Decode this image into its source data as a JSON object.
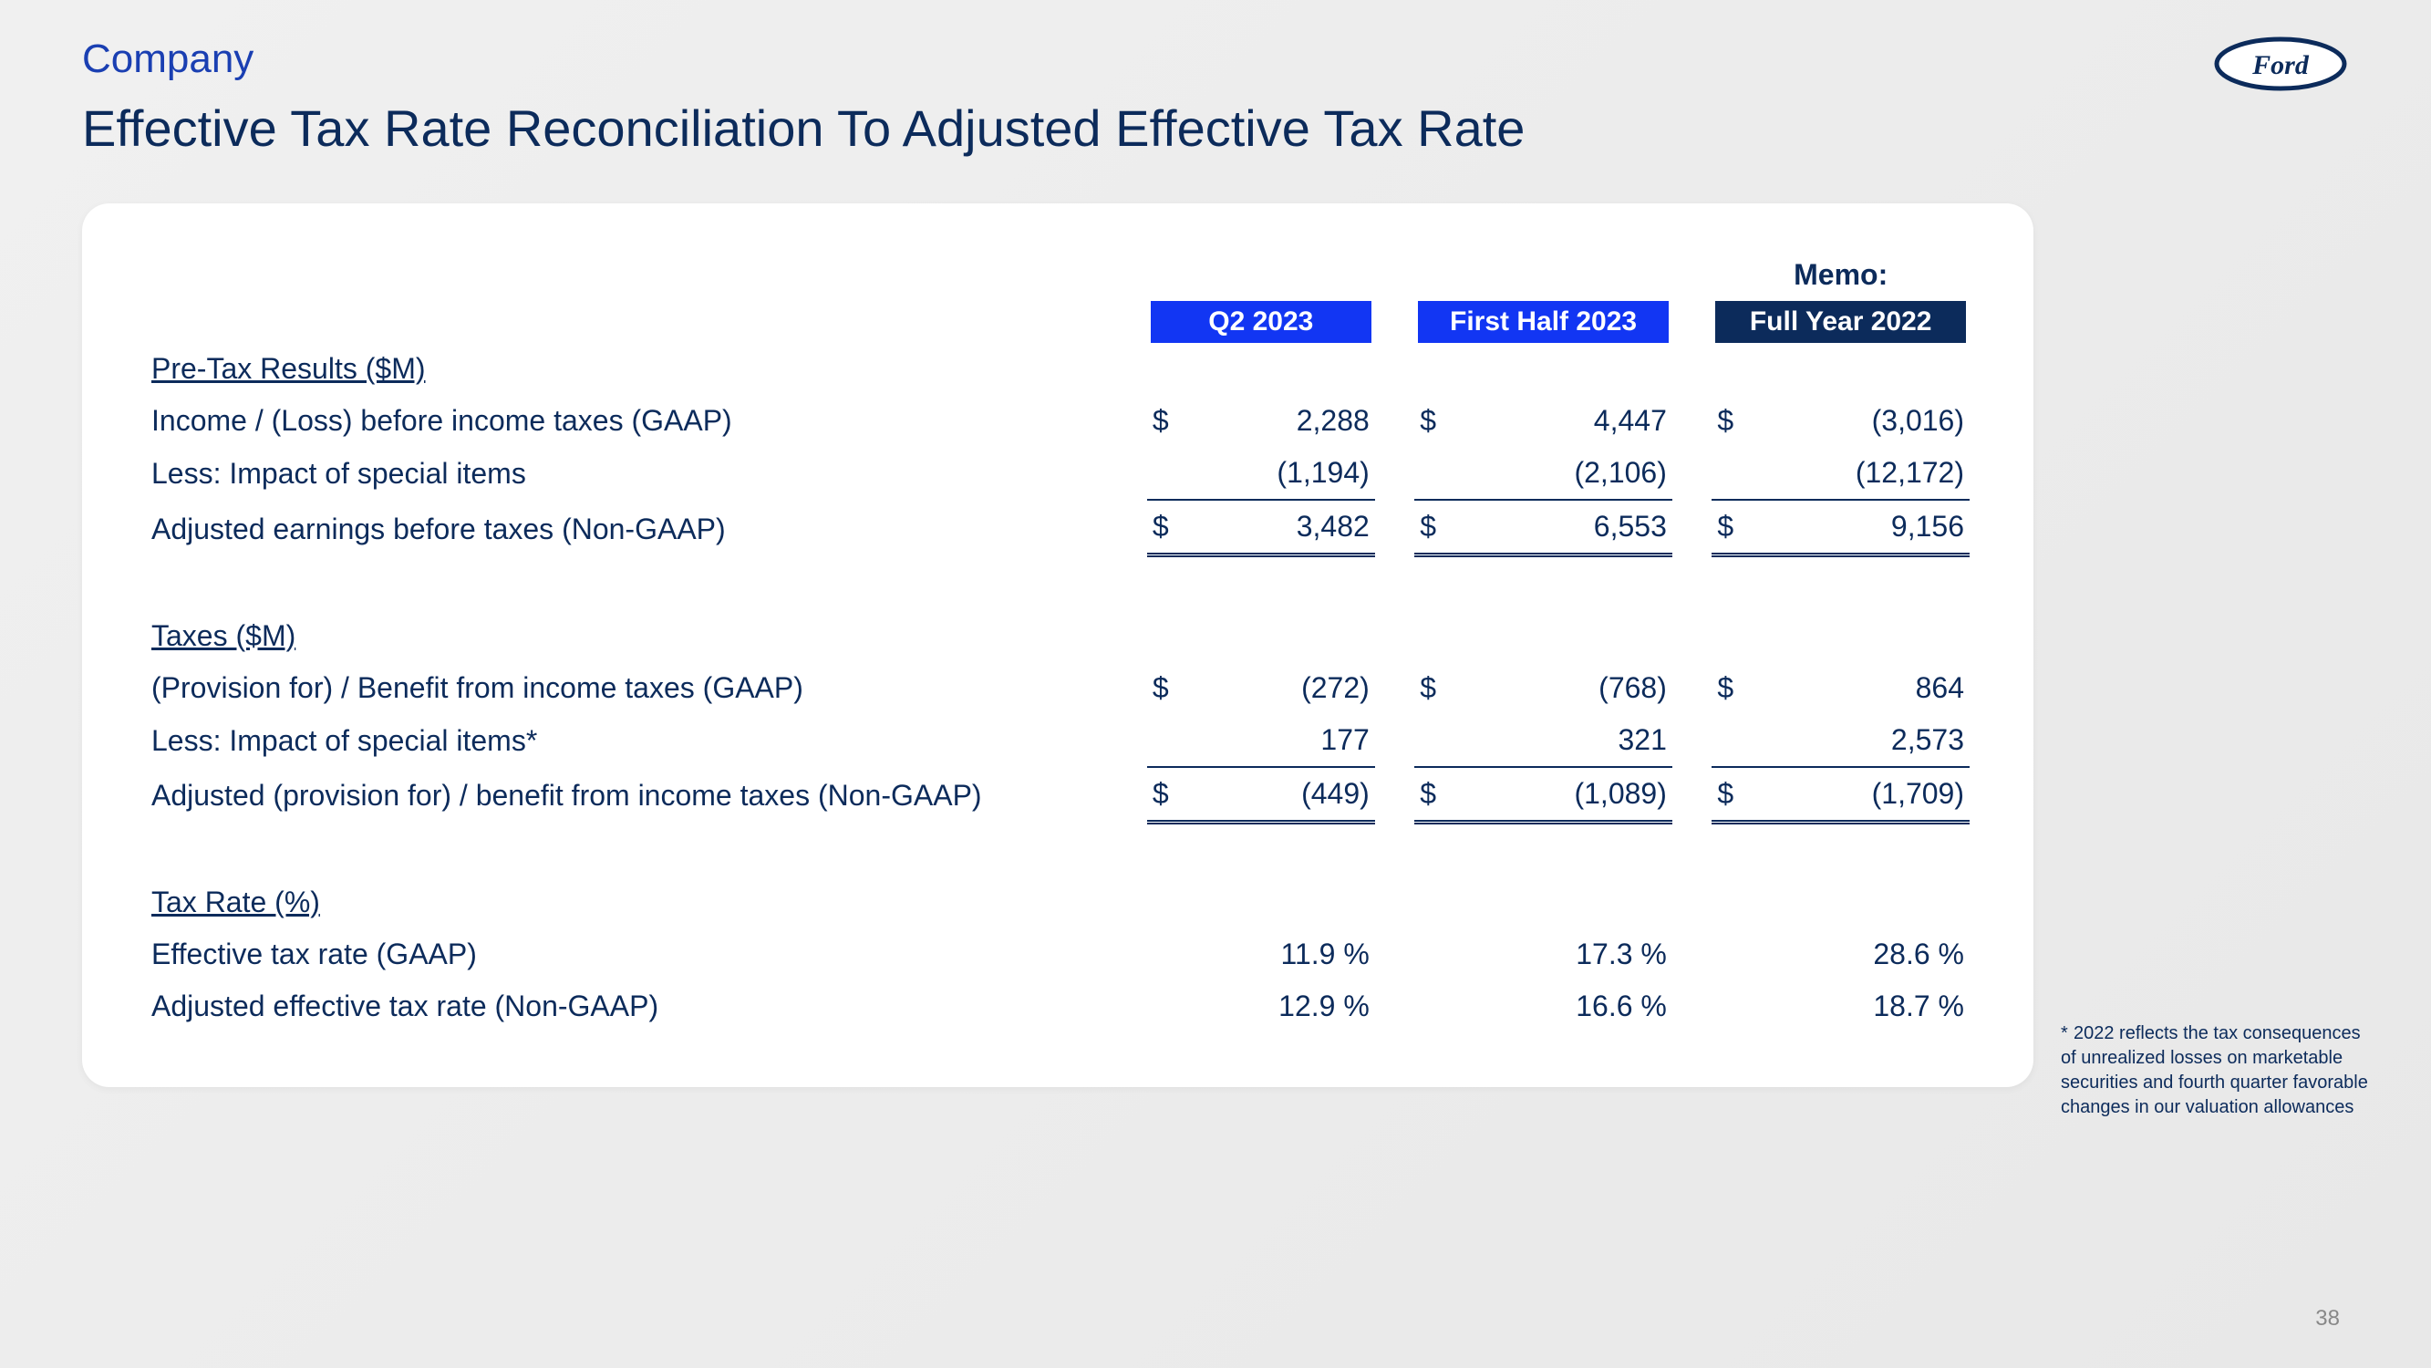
{
  "eyebrow": "Company",
  "title": "Effective Tax Rate Reconciliation To Adjusted Effective Tax Rate",
  "page_number": "38",
  "logo": {
    "ellipse_fill": "#ffffff",
    "ellipse_stroke": "#0c2b5b",
    "text": "Ford",
    "text_color": "#0c2b5b"
  },
  "columns": {
    "memo_label": "Memo:",
    "headers": [
      "Q2 2023",
      "First Half 2023",
      "Full Year 2022"
    ],
    "header_styles": [
      "pill-blue",
      "pill-blue",
      "pill-navy"
    ]
  },
  "sections": [
    {
      "title": "Pre-Tax Results ($M)",
      "rows": [
        {
          "label": "Income / (Loss) before income taxes (GAAP)",
          "dollar": true,
          "vals": [
            "2,288",
            "4,447",
            "(3,016)"
          ]
        },
        {
          "label": "Less:  Impact of special items",
          "underline": true,
          "vals": [
            "(1,194)",
            "(2,106)",
            "(12,172)"
          ]
        },
        {
          "label": "Adjusted earnings before taxes (Non-GAAP)",
          "indent": true,
          "dollar": true,
          "double": true,
          "vals": [
            "3,482",
            "6,553",
            "9,156"
          ]
        }
      ]
    },
    {
      "title": "Taxes ($M)",
      "rows": [
        {
          "label": "(Provision for) / Benefit from income taxes (GAAP)",
          "dollar": true,
          "vals": [
            "(272)",
            "(768)",
            "864"
          ]
        },
        {
          "label": "Less:  Impact of special items*",
          "underline": true,
          "vals": [
            "177",
            "321",
            "2,573"
          ]
        },
        {
          "label": "Adjusted (provision for) / benefit from income taxes (Non-GAAP)",
          "indent": true,
          "dollar": true,
          "double": true,
          "vals": [
            "(449)",
            "(1,089)",
            "(1,709)"
          ]
        }
      ]
    },
    {
      "title": "Tax Rate (%)",
      "rows": [
        {
          "label": "Effective tax rate (GAAP)",
          "vals": [
            "11.9 %",
            "17.3 %",
            "28.6 %"
          ]
        },
        {
          "label": "Adjusted effective tax rate (Non-GAAP)",
          "vals": [
            "12.9 %",
            "16.6 %",
            "18.7 %"
          ]
        }
      ]
    }
  ],
  "footnote": "2022 reflects the tax consequences of unrealized losses on marketable securities and fourth quarter favorable changes in our valuation allowances"
}
